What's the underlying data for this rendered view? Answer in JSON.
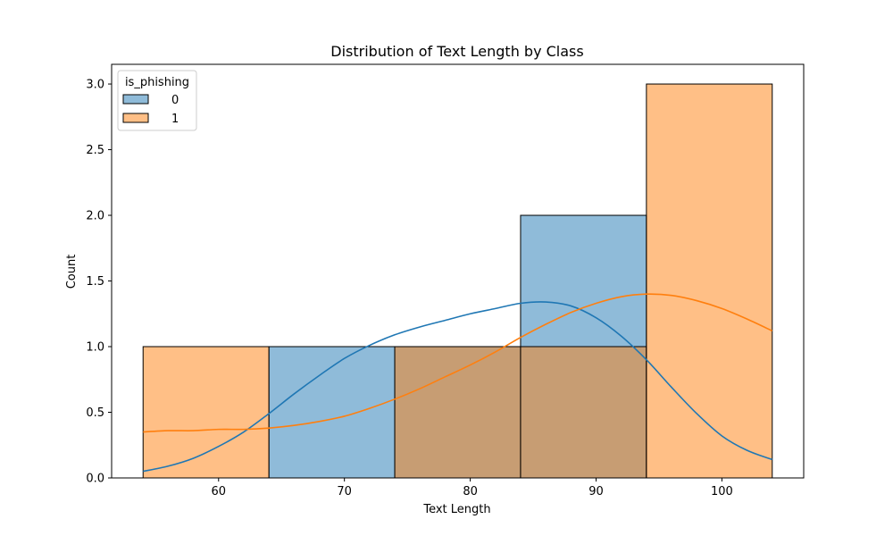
{
  "chart_data": {
    "type": "histogram",
    "title": "Distribution of Text Length by Class",
    "xlabel": "Text Length",
    "ylabel": "Count",
    "xlim": [
      51.5,
      106.5
    ],
    "ylim": [
      0,
      3.15
    ],
    "xticks": [
      60,
      70,
      80,
      90,
      100
    ],
    "yticks": [
      0.0,
      0.5,
      1.0,
      1.5,
      2.0,
      2.5,
      3.0
    ],
    "bin_edges": [
      54,
      64,
      74,
      84,
      94,
      104
    ],
    "grid": false,
    "legend": {
      "title": "is_phishing",
      "placement": "top-left"
    },
    "series": [
      {
        "name": "0",
        "color": "#1f77b4",
        "fill": "#8db8db",
        "counts": [
          0,
          1,
          1,
          2,
          0
        ],
        "kde": {
          "x": [
            54,
            56,
            58,
            60,
            62,
            64,
            66,
            68,
            70,
            72,
            74,
            76,
            78,
            80,
            82,
            84,
            86,
            88,
            90,
            92,
            94,
            96,
            98,
            100,
            102,
            104
          ],
          "y": [
            0.05,
            0.09,
            0.15,
            0.24,
            0.35,
            0.49,
            0.64,
            0.78,
            0.91,
            1.01,
            1.09,
            1.15,
            1.2,
            1.25,
            1.29,
            1.33,
            1.34,
            1.31,
            1.22,
            1.08,
            0.9,
            0.69,
            0.49,
            0.32,
            0.21,
            0.14
          ]
        }
      },
      {
        "name": "1",
        "color": "#ff7f0e",
        "fill": "#ffbb80",
        "counts": [
          1,
          0,
          1,
          1,
          3
        ],
        "kde": {
          "x": [
            54,
            56,
            58,
            60,
            62,
            64,
            66,
            68,
            70,
            72,
            74,
            76,
            78,
            80,
            82,
            84,
            86,
            88,
            90,
            92,
            94,
            96,
            98,
            100,
            102,
            104
          ],
          "y": [
            0.35,
            0.36,
            0.36,
            0.37,
            0.37,
            0.38,
            0.4,
            0.43,
            0.47,
            0.53,
            0.6,
            0.68,
            0.77,
            0.86,
            0.96,
            1.07,
            1.17,
            1.26,
            1.33,
            1.38,
            1.4,
            1.39,
            1.35,
            1.29,
            1.21,
            1.12
          ]
        }
      }
    ]
  }
}
